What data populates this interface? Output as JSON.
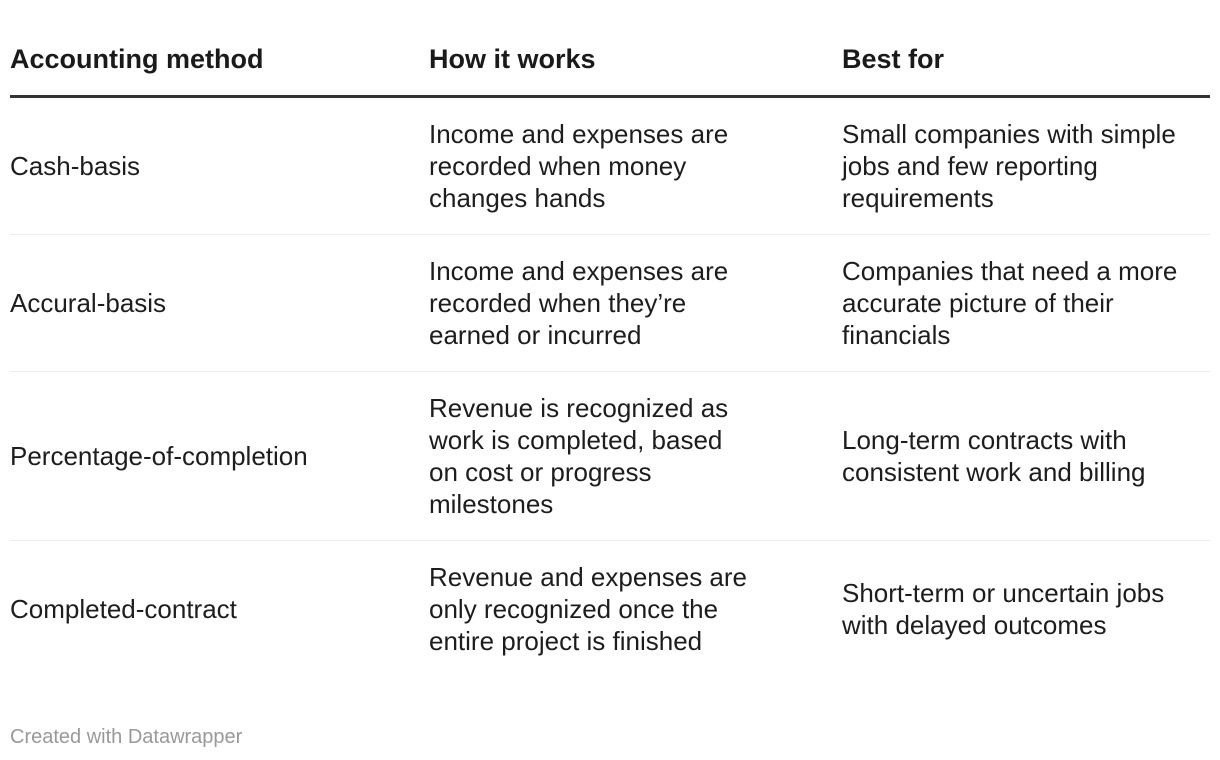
{
  "chart_data": {
    "type": "table",
    "columns": [
      "Accounting method",
      "How it works",
      "Best for"
    ],
    "rows": [
      [
        "Cash-basis",
        "Income and expenses are recorded when money changes hands",
        "Small companies with simple jobs and few reporting requirements"
      ],
      [
        "Accural-basis",
        "Income and expenses are recorded when they’re earned or incurred",
        "Companies that need a more accurate picture of their financials"
      ],
      [
        "Percentage-of-completion",
        "Revenue is recognized as work is completed, based on cost or progress milestones",
        "Long-term contracts with consistent work and billing"
      ],
      [
        "Completed-contract",
        "Revenue and expenses are only recognized once the entire project is finished",
        "Short-term or uncertain jobs with delayed outcomes"
      ]
    ],
    "title": "",
    "legend_position": "none",
    "grid": "horizontal-row-dividers"
  },
  "footer": {
    "attribution": "Created with Datawrapper"
  },
  "colors": {
    "background": "#ffffff",
    "header_text": "#1a1a1a",
    "body_text": "#1d1d1d",
    "header_rule": "#333333",
    "row_divider": "#ececec",
    "attribution_text": "#999999"
  }
}
